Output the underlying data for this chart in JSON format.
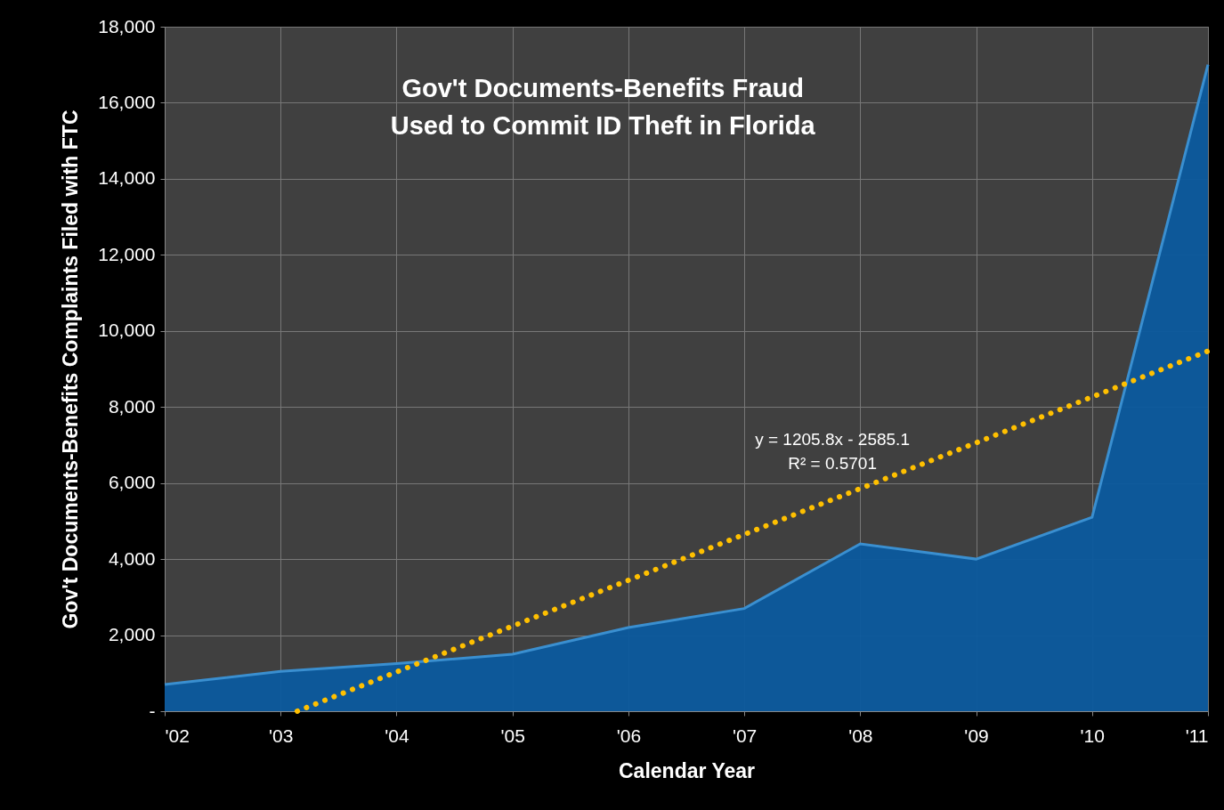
{
  "chart_data": {
    "type": "area",
    "title": "Gov't Documents-Benefits Fraud\nUsed to Commit ID Theft in Florida",
    "xlabel": "Calendar Year",
    "ylabel": "Gov't Documents-Benefits Complaints Filed with FTC",
    "x": [
      2002,
      2003,
      2004,
      2005,
      2006,
      2007,
      2008,
      2009,
      2010,
      2011
    ],
    "series": [
      {
        "color": "#0b5a9e",
        "values": [
          700,
          1050,
          1250,
          1500,
          2200,
          2700,
          4400,
          4000,
          5100,
          17000
        ]
      },
      {
        "type": "line",
        "color": "#ffc000",
        "line_style": "dotted",
        "marker": "none",
        "x": [
          2003.144,
          2011
        ],
        "values": [
          0,
          9470
        ]
      }
    ],
    "xlim": [
      2002,
      2011
    ],
    "xticks": [
      {
        "value": 2002,
        "label": "'02"
      },
      {
        "value": 2003,
        "label": "'03"
      },
      {
        "value": 2004,
        "label": "'04"
      },
      {
        "value": 2005,
        "label": "'05"
      },
      {
        "value": 2006,
        "label": "'06"
      },
      {
        "value": 2007,
        "label": "'07"
      },
      {
        "value": 2008,
        "label": "'08"
      },
      {
        "value": 2009,
        "label": "'09"
      },
      {
        "value": 2010,
        "label": "'10"
      },
      {
        "value": 2011,
        "label": "'11"
      }
    ],
    "ylim": [
      0,
      18000
    ],
    "yticks": [
      {
        "value": 0,
        "label": "-"
      },
      {
        "value": 2000,
        "label": "2,000"
      },
      {
        "value": 4000,
        "label": "4,000"
      },
      {
        "value": 6000,
        "label": "6,000"
      },
      {
        "value": 8000,
        "label": "8,000"
      },
      {
        "value": 10000,
        "label": "10,000"
      },
      {
        "value": 12000,
        "label": "12,000"
      },
      {
        "value": 14000,
        "label": "14,000"
      },
      {
        "value": 16000,
        "label": "16,000"
      },
      {
        "value": 18000,
        "label": "18,000"
      }
    ],
    "annotations": [
      "y = 1205.8x - 2585.1\nR² = 0.5701"
    ],
    "grid": true
  }
}
